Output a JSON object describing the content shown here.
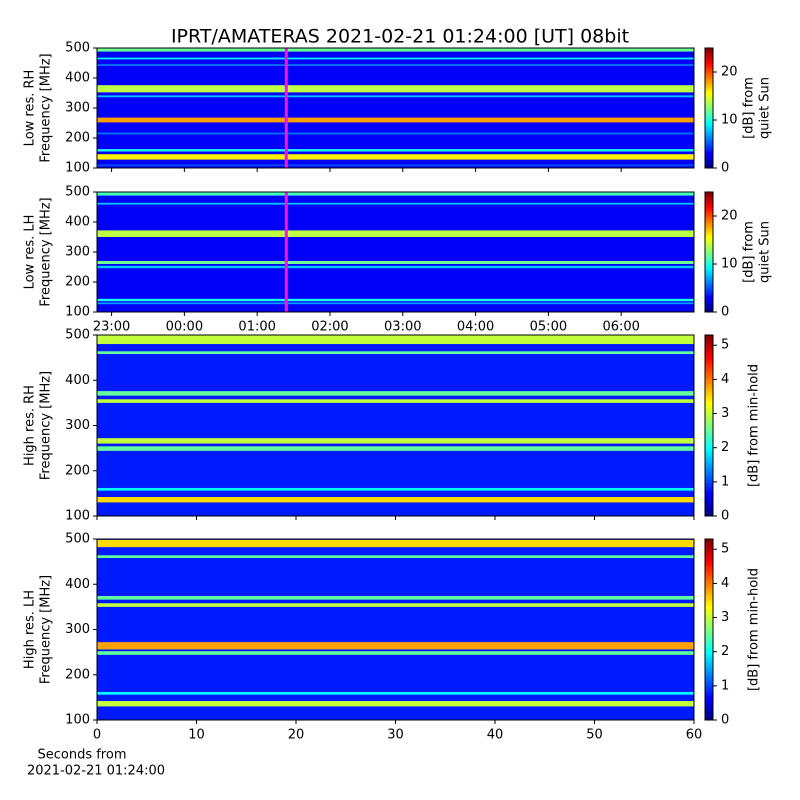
{
  "chart_data": [
    {
      "type": "heatmap",
      "title": "IPRT/AMATERAS 2021-02-21 01:24:00 [UT]   08bit",
      "ylabel": [
        "Low res. RH",
        "Frequency [MHz]"
      ],
      "ylim": [
        100,
        500
      ],
      "yticks": [
        100,
        200,
        300,
        400,
        500
      ],
      "xlim": [
        -1.2,
        7.0
      ],
      "xticks": [
        -1,
        0,
        1,
        2,
        3,
        4,
        5,
        6
      ],
      "show_xtick_labels": false,
      "colormap": "jet",
      "zlim": [
        0,
        25
      ],
      "zticks": [
        0,
        10,
        20
      ],
      "colorbar_label": [
        "[dB] from",
        "quiet Sun"
      ],
      "background": 3,
      "marker": {
        "x": 1.4,
        "color": "#e020e0"
      },
      "bands": [
        {
          "from": 488,
          "to": 500,
          "value": 12
        },
        {
          "from": 462,
          "to": 468,
          "value": 9
        },
        {
          "from": 440,
          "to": 446,
          "value": 6
        },
        {
          "from": 352,
          "to": 376,
          "value": 14
        },
        {
          "from": 336,
          "to": 342,
          "value": 8
        },
        {
          "from": 252,
          "to": 268,
          "value": 18
        },
        {
          "from": 212,
          "to": 218,
          "value": 6
        },
        {
          "from": 155,
          "to": 163,
          "value": 10
        },
        {
          "from": 128,
          "to": 146,
          "value": 16
        },
        {
          "from": 106,
          "to": 112,
          "value": 5
        }
      ]
    },
    {
      "type": "heatmap",
      "ylabel": [
        "Low res. LH",
        "Frequency [MHz]"
      ],
      "ylim": [
        100,
        500
      ],
      "yticks": [
        100,
        200,
        300,
        400,
        500
      ],
      "xlim": [
        -1.2,
        7.0
      ],
      "xticks": [
        {
          "value": -1,
          "label": "23:00"
        },
        {
          "value": 0,
          "label": "00:00"
        },
        {
          "value": 1,
          "label": "01:00"
        },
        {
          "value": 2,
          "label": "02:00"
        },
        {
          "value": 3,
          "label": "03:00"
        },
        {
          "value": 4,
          "label": "04:00"
        },
        {
          "value": 5,
          "label": "05:00"
        },
        {
          "value": 6,
          "label": "06:00"
        }
      ],
      "show_xtick_labels": true,
      "colormap": "jet",
      "zlim": [
        0,
        25
      ],
      "zticks": [
        0,
        10,
        20
      ],
      "colorbar_label": [
        "[dB] from",
        "quiet Sun"
      ],
      "background": 3,
      "marker": {
        "x": 1.4,
        "color": "#e020e0"
      },
      "bands": [
        {
          "from": 488,
          "to": 500,
          "value": 11
        },
        {
          "from": 458,
          "to": 464,
          "value": 8
        },
        {
          "from": 350,
          "to": 372,
          "value": 14
        },
        {
          "from": 260,
          "to": 270,
          "value": 12
        },
        {
          "from": 246,
          "to": 254,
          "value": 8
        },
        {
          "from": 136,
          "to": 144,
          "value": 10
        },
        {
          "from": 126,
          "to": 132,
          "value": 7
        }
      ]
    },
    {
      "type": "heatmap",
      "ylabel": [
        "High res. RH",
        "Frequency [MHz]"
      ],
      "ylim": [
        100,
        500
      ],
      "yticks": [
        100,
        200,
        300,
        400,
        500
      ],
      "xlim": [
        0,
        60
      ],
      "xticks": [
        0,
        10,
        20,
        30,
        40,
        50,
        60
      ],
      "show_xtick_labels": false,
      "colormap": "jet",
      "zlim": [
        0,
        5.3
      ],
      "zticks": [
        0,
        1,
        2,
        3,
        4,
        5
      ],
      "colorbar_label": [
        "[dB] from min-hold"
      ],
      "background": 0.8,
      "bands": [
        {
          "from": 480,
          "to": 500,
          "value": 3
        },
        {
          "from": 458,
          "to": 464,
          "value": 2.5
        },
        {
          "from": 366,
          "to": 376,
          "value": 2.5
        },
        {
          "from": 350,
          "to": 358,
          "value": 3
        },
        {
          "from": 260,
          "to": 272,
          "value": 3
        },
        {
          "from": 244,
          "to": 254,
          "value": 2.5
        },
        {
          "from": 156,
          "to": 162,
          "value": 2
        },
        {
          "from": 130,
          "to": 142,
          "value": 3.5
        }
      ]
    },
    {
      "type": "heatmap",
      "ylabel": [
        "High res. LH",
        "Frequency [MHz]"
      ],
      "ylim": [
        100,
        500
      ],
      "yticks": [
        100,
        200,
        300,
        400,
        500
      ],
      "xlim": [
        0,
        60
      ],
      "xticks": [
        0,
        10,
        20,
        30,
        40,
        50,
        60
      ],
      "show_xtick_labels": true,
      "xlabel": [
        "Seconds from",
        "2021-02-21 01:24:00"
      ],
      "colormap": "jet",
      "zlim": [
        0,
        5.3
      ],
      "zticks": [
        0,
        1,
        2,
        3,
        4,
        5
      ],
      "colorbar_label": [
        "[dB] from min-hold"
      ],
      "background": 0.8,
      "bands": [
        {
          "from": 482,
          "to": 498,
          "value": 3.5
        },
        {
          "from": 458,
          "to": 464,
          "value": 2.5
        },
        {
          "from": 366,
          "to": 374,
          "value": 2.5
        },
        {
          "from": 350,
          "to": 358,
          "value": 3
        },
        {
          "from": 256,
          "to": 272,
          "value": 3.8
        },
        {
          "from": 244,
          "to": 252,
          "value": 2.5
        },
        {
          "from": 156,
          "to": 162,
          "value": 2
        },
        {
          "from": 130,
          "to": 142,
          "value": 3
        }
      ]
    }
  ]
}
